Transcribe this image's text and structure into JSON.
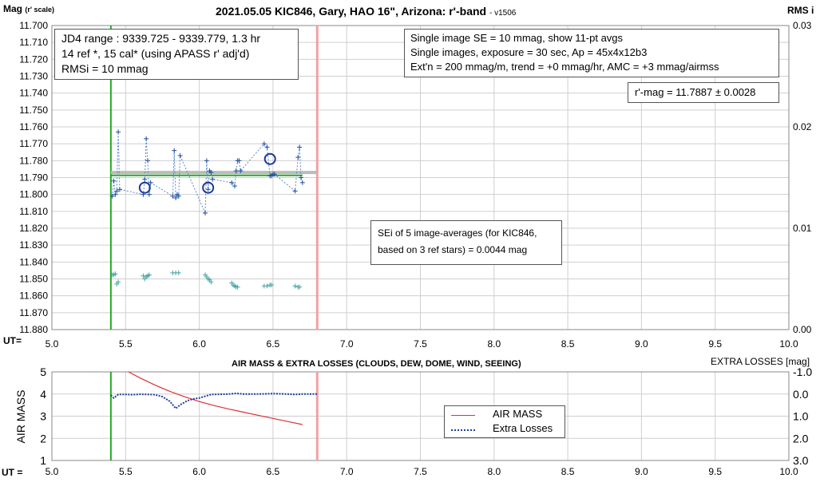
{
  "chart_data": [
    {
      "type": "scatter",
      "title": "2021.05.05 KIC846, Gary, HAO 16\", Arizona: r'-band",
      "version": "- v1506",
      "ylabel_main": "Mag",
      "ylabel_sub": "(r' scale)",
      "y2label": "RMS i",
      "xlabel": "UT=",
      "xlim": [
        5.0,
        10.0
      ],
      "ylim": [
        11.7,
        11.88
      ],
      "y_reversed": true,
      "y2lim": [
        0.0,
        0.03
      ],
      "x_ticks": [
        "5.0",
        "5.5",
        "6.0",
        "6.5",
        "7.0",
        "7.5",
        "8.0",
        "8.5",
        "9.0",
        "9.5",
        "10.0"
      ],
      "y_ticks": [
        "11.700",
        "11.710",
        "11.720",
        "11.730",
        "11.740",
        "11.750",
        "11.760",
        "11.770",
        "11.780",
        "11.790",
        "11.800",
        "11.810",
        "11.820",
        "11.830",
        "11.840",
        "11.850",
        "11.860",
        "11.870",
        "11.880"
      ],
      "y2_ticks": [
        "0.03",
        "0.02",
        "0.01",
        "0.00"
      ],
      "grid": true,
      "start_line_x": 5.4,
      "end_line_x": 6.8,
      "mean_mag": 11.7887,
      "mean_line": {
        "x": [
          5.4,
          6.7
        ],
        "y": 11.7887
      },
      "trend_line": {
        "x": [
          5.4,
          6.8
        ],
        "y": 11.787
      },
      "series": [
        {
          "name": "single images",
          "x": [
            5.41,
            5.42,
            5.43,
            5.44,
            5.45,
            5.46,
            5.62,
            5.63,
            5.64,
            5.65,
            5.66,
            5.67,
            5.82,
            5.83,
            5.84,
            5.85,
            5.86,
            5.87,
            6.04,
            6.05,
            6.06,
            6.07,
            6.08,
            6.09,
            6.22,
            6.24,
            6.25,
            6.26,
            6.27,
            6.28,
            6.44,
            6.46,
            6.48,
            6.49,
            6.5,
            6.51,
            6.65,
            6.67,
            6.68,
            6.69,
            6.7
          ],
          "y": [
            11.801,
            11.792,
            11.8,
            11.798,
            11.763,
            11.797,
            11.8,
            11.791,
            11.767,
            11.78,
            11.8,
            11.793,
            11.801,
            11.774,
            11.802,
            11.8,
            11.801,
            11.777,
            11.811,
            11.78,
            11.797,
            11.786,
            11.787,
            11.791,
            11.793,
            11.795,
            11.786,
            11.78,
            11.78,
            11.786,
            11.77,
            11.772,
            11.789,
            11.789,
            11.788,
            11.788,
            11.798,
            11.778,
            11.772,
            11.79,
            11.793
          ]
        },
        {
          "name": "11-pt avgs",
          "x": [
            5.63,
            6.06,
            6.48
          ],
          "y": [
            11.796,
            11.796,
            11.779
          ]
        },
        {
          "name": "RMSi",
          "x": [
            5.41,
            5.42,
            5.43,
            5.44,
            5.45,
            5.62,
            5.63,
            5.64,
            5.65,
            5.66,
            5.82,
            5.84,
            5.86,
            6.04,
            6.05,
            6.06,
            6.07,
            6.08,
            6.22,
            6.23,
            6.24,
            6.25,
            6.26,
            6.44,
            6.46,
            6.48,
            6.49,
            6.65,
            6.67,
            6.68
          ],
          "y": [
            0.0054,
            0.0054,
            0.0055,
            0.0045,
            0.0047,
            0.0053,
            0.005,
            0.0052,
            0.0053,
            0.0054,
            0.0056,
            0.0056,
            0.0056,
            0.0054,
            0.0052,
            0.005,
            0.0049,
            0.0047,
            0.0046,
            0.0044,
            0.0043,
            0.0042,
            0.0042,
            0.0043,
            0.0043,
            0.0044,
            0.0044,
            0.0043,
            0.0042,
            0.0042
          ]
        }
      ],
      "annotations": {
        "box1": [
          "JD4 range : 9339.725 - 9339.779,  1.3  hr",
          "14 ref *, 15 cal* (using APASS r' adj'd)",
          "RMSi = 10 mmag"
        ],
        "box2": [
          "Single image SE = 10 mmag, show  11-pt avgs",
          "Single images, exposure = 30 sec, Ap = 45x4x12b3",
          "Ext'n = 200 mmag/m, trend =  +0 mmag/hr, AMC = +3 mmag/airmss"
        ],
        "box3": "r'-mag = 11.7887 ± 0.0028",
        "box4": [
          "SEi of 5 image-averages (for KIC846,",
          "based on 3 ref stars) = 0.0044 mag"
        ]
      },
      "colors": {
        "points": "#1f4e9e",
        "rms": "#4aa3a3",
        "green": "#22aa22",
        "gray": "#bbbbbb",
        "pink": "#f4a0a0"
      }
    },
    {
      "type": "line",
      "title": "AIR MASS & EXTRA LOSSES (CLOUDS, DEW, DOME, WIND, SEEING)",
      "ylabel": "AIR MASS",
      "y2label": "EXTRA LOSSES [mag]",
      "xlabel": "UT =",
      "xlim": [
        5.0,
        10.0
      ],
      "ylim": [
        1,
        5
      ],
      "y2lim": [
        -1.0,
        3.0
      ],
      "x_ticks": [
        "5.0",
        "5.5",
        "6.0",
        "6.5",
        "7.0",
        "7.5",
        "8.0",
        "8.5",
        "9.0",
        "9.5",
        "10.0"
      ],
      "y_ticks": [
        "1",
        "2",
        "3",
        "4",
        "5"
      ],
      "y2_ticks": [
        "-1.0",
        "0.0",
        "1.0",
        "2.0",
        "3.0"
      ],
      "grid": true,
      "start_line_x": 5.4,
      "end_line_x": 6.8,
      "legend": {
        "position": "center-right",
        "items": [
          "AIR MASS",
          "Extra Losses"
        ]
      },
      "series": [
        {
          "name": "AIR MASS",
          "x": [
            5.52,
            5.6,
            5.7,
            5.8,
            5.9,
            6.0,
            6.1,
            6.2,
            6.3,
            6.4,
            6.5,
            6.6,
            6.7
          ],
          "y": [
            5.0,
            4.72,
            4.4,
            4.12,
            3.88,
            3.66,
            3.48,
            3.32,
            3.18,
            3.04,
            2.9,
            2.76,
            2.62
          ]
        },
        {
          "name": "Extra Losses",
          "x": [
            5.4,
            5.42,
            5.45,
            5.5,
            5.55,
            5.6,
            5.65,
            5.7,
            5.75,
            5.8,
            5.84,
            5.88,
            5.92,
            5.96,
            6.0,
            6.04,
            6.08,
            6.15,
            6.2,
            6.25,
            6.3,
            6.4,
            6.5,
            6.6,
            6.65,
            6.7,
            6.8
          ],
          "y": [
            0.05,
            0.18,
            0.02,
            0.02,
            0.03,
            0.01,
            0.02,
            0.03,
            0.12,
            0.33,
            0.65,
            0.45,
            0.3,
            0.22,
            0.18,
            0.1,
            0.02,
            0.01,
            0.0,
            -0.03,
            0.0,
            0.0,
            -0.02,
            0.0,
            0.02,
            0.0,
            0.0
          ]
        }
      ],
      "colors": {
        "airmass": "#e03030",
        "losses": "#1f3f9e",
        "green": "#22aa22",
        "pink": "#f4a0a0"
      }
    }
  ]
}
